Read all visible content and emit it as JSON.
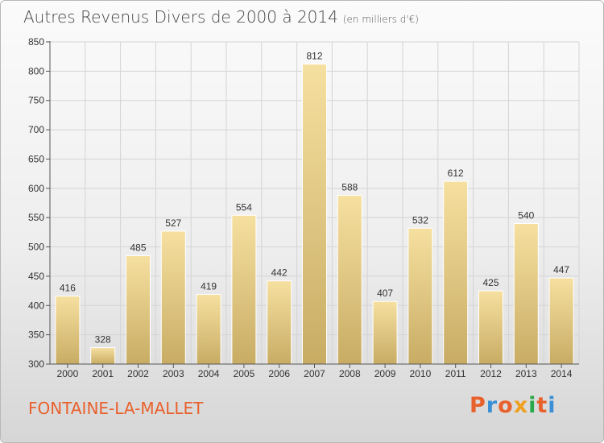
{
  "title": {
    "main": "Autres Revenus Divers de 2000 à 2014",
    "unit": "(en milliers d'€)"
  },
  "town": "FONTAINE-LA-MALLET",
  "logo": {
    "text": "Proxiti",
    "colors": [
      "#e8612c",
      "#3a8fd6",
      "#e8612c",
      "#f0a020",
      "#2aa84a",
      "#e8612c",
      "#3a8fd6"
    ]
  },
  "colors": {
    "bar_top": "#f6e0a0",
    "bar_bottom": "#c8ac64",
    "grid": "#d4d4d4",
    "axis_text": "#333333"
  },
  "chart_data": {
    "type": "bar",
    "categories": [
      "2000",
      "2001",
      "2002",
      "2003",
      "2004",
      "2005",
      "2006",
      "2007",
      "2008",
      "2009",
      "2010",
      "2011",
      "2012",
      "2013",
      "2014"
    ],
    "values": [
      416,
      328,
      485,
      527,
      419,
      554,
      442,
      812,
      588,
      407,
      532,
      612,
      425,
      540,
      447
    ],
    "title": "Autres Revenus Divers de 2000 à 2014",
    "xlabel": "",
    "ylabel": "",
    "ylim": [
      300,
      850
    ],
    "yticks": [
      300,
      350,
      400,
      450,
      500,
      550,
      600,
      650,
      700,
      750,
      800,
      850
    ],
    "grid": true,
    "legend": "none"
  }
}
